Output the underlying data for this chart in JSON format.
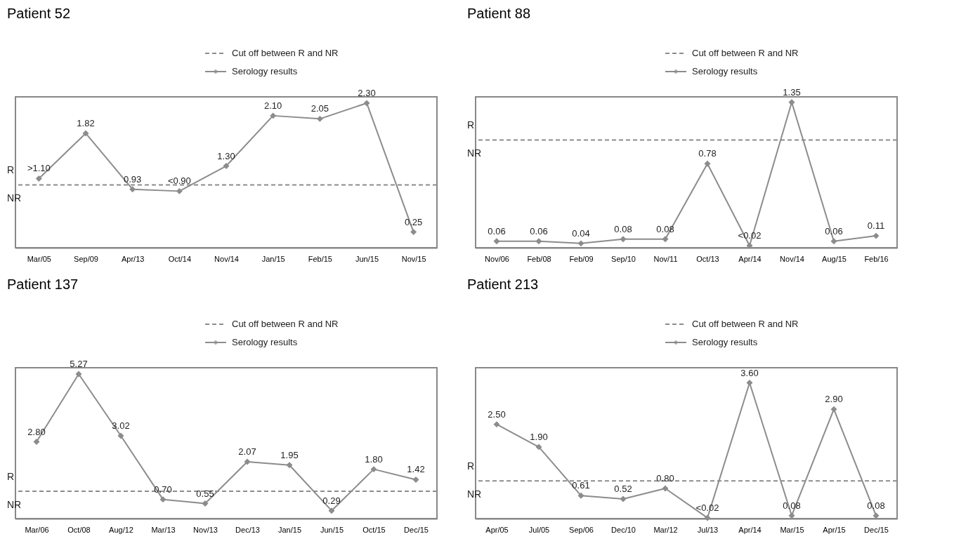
{
  "chart_data": [
    {
      "type": "line",
      "title": "Patient 52",
      "categories": [
        "Mar/05",
        "Sep/09",
        "Apr/13",
        "Oct/14",
        "Nov/14",
        "Jan/15",
        "Feb/15",
        "Jun/15",
        "Nov/15"
      ],
      "series": [
        {
          "name": "Serology results",
          "color": "#8c8c8c",
          "values": [
            1.1,
            1.82,
            0.93,
            0.9,
            1.3,
            2.1,
            2.05,
            2.3,
            0.25
          ],
          "value_labels": [
            ">1.10",
            "1.82",
            "0.93",
            "<0.90",
            "1.30",
            "2.10",
            "2.05",
            "2.30",
            "0.25"
          ]
        }
      ],
      "ref_lines": [
        {
          "axis": "y",
          "value": 1.0,
          "label": "Cut off between R and NR",
          "color": "#8c8c8c",
          "line_style": "dashed"
        }
      ],
      "annotations": [
        "R",
        "NR"
      ],
      "marker": "diamond",
      "line_style": "solid",
      "grid": false,
      "legend": "top"
    },
    {
      "type": "line",
      "title": "Patient 88",
      "categories": [
        "Nov/06",
        "Feb/08",
        "Feb/09",
        "Sep/10",
        "Nov/11",
        "Oct/13",
        "Apr/14",
        "Nov/14",
        "Aug/15",
        "Feb/16"
      ],
      "series": [
        {
          "name": "Serology results",
          "color": "#8c8c8c",
          "values": [
            0.06,
            0.06,
            0.04,
            0.08,
            0.08,
            0.78,
            0.02,
            1.35,
            0.06,
            0.11
          ],
          "value_labels": [
            "0.06",
            "0.06",
            "0.04",
            "0.08",
            "0.08",
            "0.78",
            "<0.02",
            "1.35",
            "0.06",
            "0.11"
          ]
        }
      ],
      "ref_lines": [
        {
          "axis": "y",
          "value": 1.0,
          "label": "Cut off between R and NR",
          "color": "#8c8c8c",
          "line_style": "dashed"
        }
      ],
      "annotations": [
        "R",
        "NR"
      ],
      "marker": "diamond",
      "line_style": "solid",
      "grid": false,
      "legend": "top"
    },
    {
      "type": "line",
      "title": "Patient 137",
      "categories": [
        "Mar/06",
        "Oct/08",
        "Aug/12",
        "Mar/13",
        "Nov/13",
        "Dec/13",
        "Jan/15",
        "Jun/15",
        "Oct/15",
        "Dec/15"
      ],
      "series": [
        {
          "name": "Serology results",
          "color": "#8c8c8c",
          "values": [
            2.8,
            5.27,
            3.02,
            0.7,
            0.55,
            2.07,
            1.95,
            0.29,
            1.8,
            1.42
          ],
          "value_labels": [
            "2.80",
            "5.27",
            "3.02",
            "0.70",
            "0.55",
            "2.07",
            "1.95",
            "0.29",
            "1.80",
            "1.42"
          ]
        }
      ],
      "ref_lines": [
        {
          "axis": "y",
          "value": 1.0,
          "label": "Cut off between R and NR",
          "color": "#8c8c8c",
          "line_style": "dashed"
        }
      ],
      "annotations": [
        "R",
        "NR"
      ],
      "marker": "diamond",
      "line_style": "solid",
      "grid": false,
      "legend": "top"
    },
    {
      "type": "line",
      "title": "Patient 213",
      "categories": [
        "Apr/05",
        "Jul/05",
        "Sep/06",
        "Dec/10",
        "Mar/12",
        "Jul/13",
        "Apr/14",
        "Mar/15",
        "Apr/15",
        "Dec/15"
      ],
      "series": [
        {
          "name": "Serology results",
          "color": "#8c8c8c",
          "values": [
            2.5,
            1.9,
            0.61,
            0.52,
            0.8,
            0.02,
            3.6,
            0.08,
            2.9,
            0.08
          ],
          "value_labels": [
            "2.50",
            "1.90",
            "0.61",
            "0.52",
            "0.80",
            "<0.02",
            "3.60",
            "0.08",
            "2.90",
            "0.08"
          ]
        }
      ],
      "ref_lines": [
        {
          "axis": "y",
          "value": 1.0,
          "label": "Cut off between R and NR",
          "color": "#8c8c8c",
          "line_style": "dashed"
        }
      ],
      "annotations": [
        "R",
        "NR"
      ],
      "marker": "diamond",
      "line_style": "solid",
      "grid": false,
      "legend": "top"
    }
  ]
}
